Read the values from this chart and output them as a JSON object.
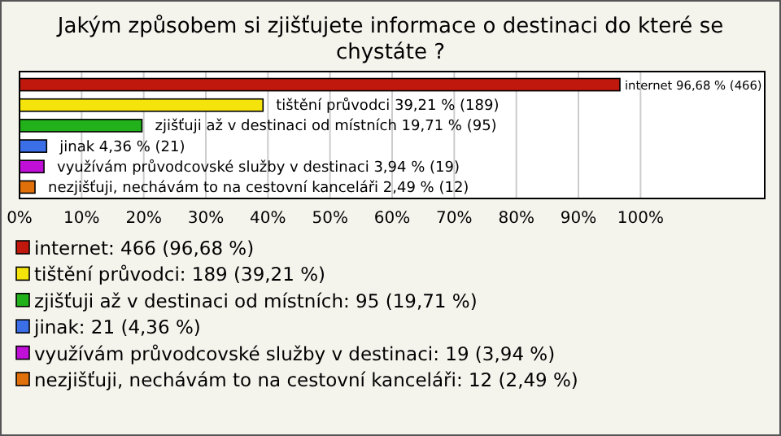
{
  "chart_data": {
    "type": "bar",
    "orientation": "horizontal",
    "stacked": true,
    "title": "Jakým způsobem si zjišťujete informace o destinaci do které se chystáte ?",
    "categories": [
      null,
      null,
      null,
      null,
      null,
      null
    ],
    "xlim": [
      0,
      120
    ],
    "xticks": [
      {
        "value": 0,
        "label": "0%"
      },
      {
        "value": 10,
        "label": "10%"
      },
      {
        "value": 20,
        "label": "20%"
      },
      {
        "value": 30,
        "label": "30%"
      },
      {
        "value": 40,
        "label": "40%"
      },
      {
        "value": 50,
        "label": "50%"
      },
      {
        "value": 60,
        "label": "60%"
      },
      {
        "value": 70,
        "label": "70%"
      },
      {
        "value": 80,
        "label": "80%"
      },
      {
        "value": 90,
        "label": "90%"
      },
      {
        "value": 100,
        "label": "100%"
      }
    ],
    "grid": "x",
    "legend": "bottom",
    "series": [
      {
        "name": "internet: 466 (96,68 %)",
        "color": "#c0180c",
        "values": [
          96.68,
          null,
          null,
          null,
          null,
          null
        ],
        "value_labels": [
          "internet 96,68 % (466)",
          null,
          null,
          null,
          null,
          null
        ]
      },
      {
        "name": "tištění průvodci: 189 (39,21 %)",
        "color": "#f5e30c",
        "values": [
          null,
          39.21,
          null,
          null,
          null,
          null
        ],
        "value_labels": [
          null,
          "tištění průvodci 39,21 % (189)",
          null,
          null,
          null,
          null
        ]
      },
      {
        "name": "zjišťuji až v destinaci od místních: 95 (19,71 %)",
        "color": "#22b01b",
        "values": [
          null,
          null,
          19.71,
          null,
          null,
          null
        ],
        "value_labels": [
          null,
          null,
          "zjišťuji až v destinaci od místních 19,71 % (95)",
          null,
          null,
          null
        ]
      },
      {
        "name": "jinak: 21 (4,36 %)",
        "color": "#3b6fe8",
        "values": [
          null,
          null,
          null,
          4.36,
          null,
          null
        ],
        "value_labels": [
          null,
          null,
          null,
          "jinak 4,36 % (21)",
          null,
          null
        ]
      },
      {
        "name": "využívám průvodcovské služby v destinaci: 19 (3,94 %)",
        "color": "#c010d8",
        "values": [
          null,
          null,
          null,
          null,
          3.94,
          null
        ],
        "value_labels": [
          null,
          null,
          null,
          null,
          "využívám průvodcovské služby v destinaci 3,94 % (19)",
          null
        ]
      },
      {
        "name": "nezjišťuji, nechávám to na cestovní kanceláři: 12 (2,49 %)",
        "color": "#e0700a",
        "values": [
          null,
          null,
          null,
          null,
          null,
          2.49
        ],
        "value_labels": [
          null,
          null,
          null,
          null,
          null,
          "nezjišťuji, nechávám to na cestovní kanceláři 2,49 % (12)"
        ]
      }
    ]
  }
}
